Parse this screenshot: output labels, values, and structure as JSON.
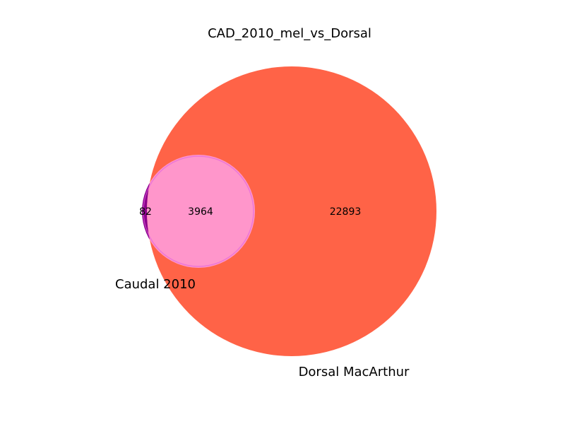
{
  "chart_data": {
    "type": "venn",
    "title": "CAD_2010_mel_vs_Dorsal",
    "sets": [
      {
        "name": "Caudal 2010",
        "color": "#8b008b"
      },
      {
        "name": "Dorsal MacArthur",
        "color": "#ff6347"
      }
    ],
    "regions": {
      "caudal_only": "82",
      "intersection": "3964",
      "dorsal_only": "22893"
    },
    "intersection_color": "#ff96cb"
  }
}
